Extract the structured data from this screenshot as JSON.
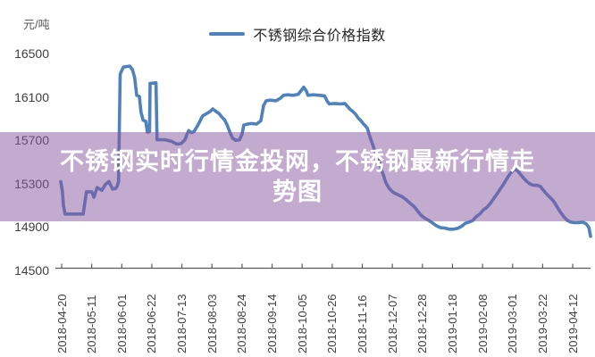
{
  "app": {
    "type": "price-trend-chart-screenshot",
    "background_color": "#ffffff"
  },
  "unit_label": "元/吨",
  "legend": {
    "marker_color": "#4f81bd",
    "label": "不锈钢综合价格指数"
  },
  "overlay": {
    "band_color_rgba": "rgba(135,85,159,0.5)",
    "band_hex_over_white": "#c3aacf",
    "text_color": "#ffffff",
    "title_line1": "不锈钢实时行情金投网，不锈钢最新行情走",
    "title_line2": "势图"
  },
  "chart_data": {
    "type": "line",
    "title": "不锈钢实时行情金投网，不锈钢最新行情走势图",
    "ylabel": "元/吨",
    "ylim": [
      14500,
      16500
    ],
    "y_ticks": [
      16500,
      16100,
      15700,
      15300,
      14900,
      14500
    ],
    "x_ticks": [
      "2018-04-20",
      "2018-05-11",
      "2018-06-01",
      "2018-06-22",
      "2018-07-13",
      "2018-08-03",
      "2018-08-24",
      "2018-09-14",
      "2018-10-05",
      "2018-10-26",
      "2018-11-16",
      "2018-12-07",
      "2018-12-28",
      "2019-01-18",
      "2019-02-08",
      "2019-03-01",
      "2019-03-22",
      "2019-04-12"
    ],
    "grid": false,
    "legend_position": "top-center",
    "line_color": "#4f81bd",
    "axis_color": "#595959",
    "series": [
      {
        "name": "不锈钢综合价格指数",
        "x_is_fraction_of_date_range": true,
        "points": [
          [
            0.01,
            15320
          ],
          [
            0.013,
            15230
          ],
          [
            0.015,
            15100
          ],
          [
            0.018,
            15020
          ],
          [
            0.052,
            15020
          ],
          [
            0.055,
            15120
          ],
          [
            0.058,
            15225
          ],
          [
            0.068,
            15225
          ],
          [
            0.072,
            15175
          ],
          [
            0.078,
            15265
          ],
          [
            0.083,
            15250
          ],
          [
            0.087,
            15240
          ],
          [
            0.093,
            15290
          ],
          [
            0.1,
            15320
          ],
          [
            0.107,
            15250
          ],
          [
            0.112,
            15255
          ],
          [
            0.115,
            15270
          ],
          [
            0.118,
            15320
          ],
          [
            0.121,
            16310
          ],
          [
            0.127,
            16375
          ],
          [
            0.139,
            16385
          ],
          [
            0.144,
            16350
          ],
          [
            0.148,
            16280
          ],
          [
            0.15,
            16200
          ],
          [
            0.152,
            16115
          ],
          [
            0.157,
            16105
          ],
          [
            0.16,
            15960
          ],
          [
            0.164,
            15885
          ],
          [
            0.169,
            15875
          ],
          [
            0.172,
            15775
          ],
          [
            0.176,
            15780
          ],
          [
            0.177,
            16225
          ],
          [
            0.188,
            16230
          ],
          [
            0.19,
            15705
          ],
          [
            0.205,
            15705
          ],
          [
            0.217,
            15690
          ],
          [
            0.227,
            15665
          ],
          [
            0.235,
            15670
          ],
          [
            0.242,
            15705
          ],
          [
            0.245,
            15745
          ],
          [
            0.249,
            15790
          ],
          [
            0.254,
            15770
          ],
          [
            0.259,
            15780
          ],
          [
            0.264,
            15820
          ],
          [
            0.269,
            15865
          ],
          [
            0.275,
            15925
          ],
          [
            0.282,
            15945
          ],
          [
            0.289,
            15965
          ],
          [
            0.294,
            15990
          ],
          [
            0.299,
            15970
          ],
          [
            0.306,
            15945
          ],
          [
            0.311,
            15915
          ],
          [
            0.316,
            15890
          ],
          [
            0.321,
            15840
          ],
          [
            0.326,
            15775
          ],
          [
            0.331,
            15720
          ],
          [
            0.337,
            15700
          ],
          [
            0.344,
            15705
          ],
          [
            0.349,
            15760
          ],
          [
            0.352,
            15840
          ],
          [
            0.359,
            15850
          ],
          [
            0.367,
            15855
          ],
          [
            0.376,
            15850
          ],
          [
            0.384,
            15880
          ],
          [
            0.389,
            16020
          ],
          [
            0.394,
            16065
          ],
          [
            0.402,
            16070
          ],
          [
            0.412,
            16065
          ],
          [
            0.421,
            16090
          ],
          [
            0.426,
            16115
          ],
          [
            0.434,
            16120
          ],
          [
            0.444,
            16115
          ],
          [
            0.454,
            16125
          ],
          [
            0.461,
            16170
          ],
          [
            0.464,
            16190
          ],
          [
            0.469,
            16155
          ],
          [
            0.472,
            16115
          ],
          [
            0.482,
            16120
          ],
          [
            0.494,
            16115
          ],
          [
            0.503,
            16110
          ],
          [
            0.508,
            16060
          ],
          [
            0.512,
            16035
          ],
          [
            0.522,
            16040
          ],
          [
            0.533,
            16035
          ],
          [
            0.541,
            16040
          ],
          [
            0.546,
            16010
          ],
          [
            0.551,
            15985
          ],
          [
            0.556,
            15965
          ],
          [
            0.561,
            15940
          ],
          [
            0.566,
            15905
          ],
          [
            0.571,
            15880
          ],
          [
            0.576,
            15850
          ],
          [
            0.579,
            15835
          ],
          [
            0.583,
            15810
          ],
          [
            0.586,
            15760
          ],
          [
            0.589,
            15715
          ],
          [
            0.593,
            15660
          ],
          [
            0.596,
            15615
          ],
          [
            0.599,
            15575
          ],
          [
            0.603,
            15530
          ],
          [
            0.606,
            15490
          ],
          [
            0.609,
            15430
          ],
          [
            0.613,
            15380
          ],
          [
            0.616,
            15330
          ],
          [
            0.619,
            15295
          ],
          [
            0.624,
            15255
          ],
          [
            0.631,
            15220
          ],
          [
            0.639,
            15200
          ],
          [
            0.648,
            15180
          ],
          [
            0.656,
            15150
          ],
          [
            0.664,
            15115
          ],
          [
            0.671,
            15085
          ],
          [
            0.678,
            15040
          ],
          [
            0.684,
            15005
          ],
          [
            0.691,
            14980
          ],
          [
            0.698,
            14960
          ],
          [
            0.704,
            14940
          ],
          [
            0.711,
            14915
          ],
          [
            0.719,
            14895
          ],
          [
            0.728,
            14890
          ],
          [
            0.736,
            14880
          ],
          [
            0.744,
            14880
          ],
          [
            0.753,
            14890
          ],
          [
            0.76,
            14910
          ],
          [
            0.766,
            14935
          ],
          [
            0.773,
            14945
          ],
          [
            0.78,
            14960
          ],
          [
            0.786,
            14995
          ],
          [
            0.793,
            15020
          ],
          [
            0.8,
            15060
          ],
          [
            0.806,
            15080
          ],
          [
            0.813,
            15120
          ],
          [
            0.82,
            15170
          ],
          [
            0.826,
            15210
          ],
          [
            0.831,
            15250
          ],
          [
            0.836,
            15285
          ],
          [
            0.841,
            15325
          ],
          [
            0.846,
            15365
          ],
          [
            0.851,
            15400
          ],
          [
            0.856,
            15425
          ],
          [
            0.861,
            15430
          ],
          [
            0.866,
            15405
          ],
          [
            0.871,
            15375
          ],
          [
            0.876,
            15345
          ],
          [
            0.881,
            15320
          ],
          [
            0.886,
            15300
          ],
          [
            0.893,
            15285
          ],
          [
            0.9,
            15285
          ],
          [
            0.906,
            15275
          ],
          [
            0.911,
            15245
          ],
          [
            0.916,
            15215
          ],
          [
            0.921,
            15190
          ],
          [
            0.927,
            15160
          ],
          [
            0.932,
            15130
          ],
          [
            0.937,
            15090
          ],
          [
            0.942,
            15050
          ],
          [
            0.947,
            15015
          ],
          [
            0.952,
            14985
          ],
          [
            0.957,
            14960
          ],
          [
            0.963,
            14945
          ],
          [
            0.97,
            14940
          ],
          [
            0.978,
            14940
          ],
          [
            0.985,
            14945
          ],
          [
            0.992,
            14930
          ],
          [
            0.997,
            14895
          ],
          [
            1.0,
            14815
          ]
        ]
      }
    ]
  }
}
